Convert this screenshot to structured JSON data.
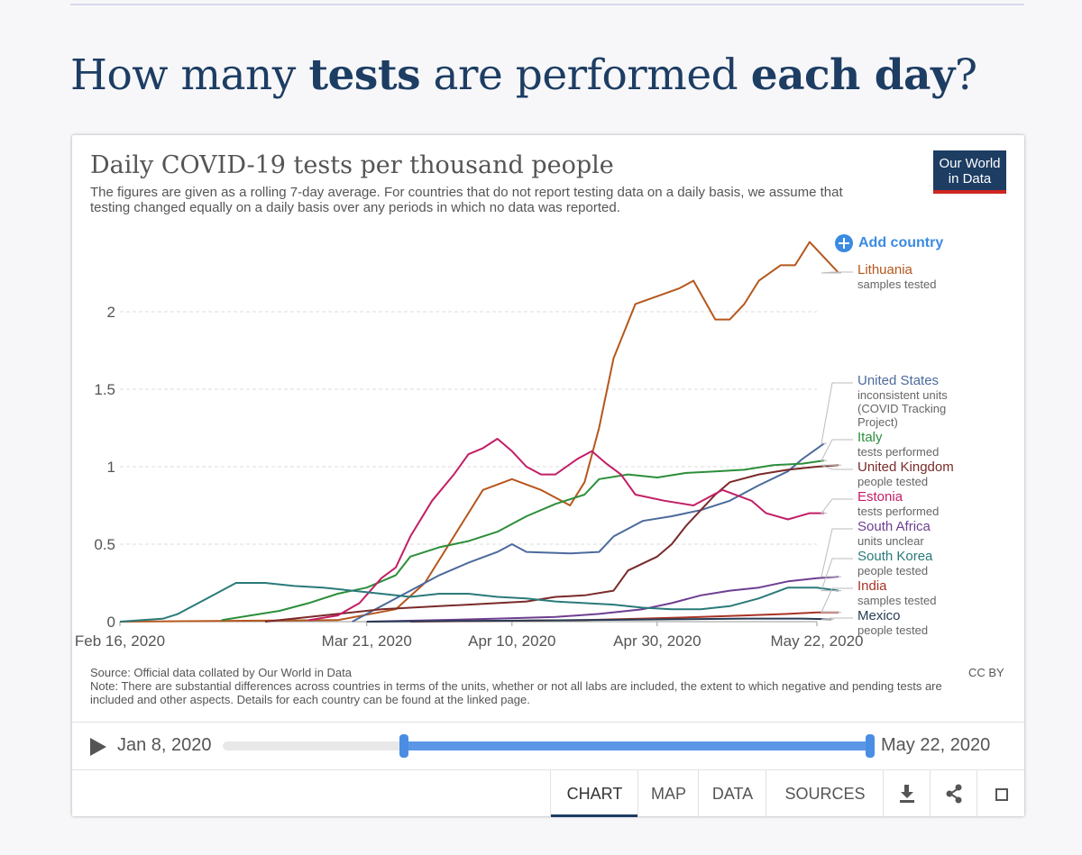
{
  "page": {
    "title_pre": "How many ",
    "title_b1": "tests",
    "title_mid": " are performed ",
    "title_b2": "each day",
    "title_post": "?"
  },
  "header": {
    "title": "Daily COVID-19 tests per thousand people",
    "subtitle": "The figures are given as a rolling 7-day average. For countries that do not report testing data on a daily basis, we assume that testing changed equally on a daily basis over any periods in which no data was reported.",
    "logo_line1": "Our World",
    "logo_line2": "in Data",
    "add_country": "Add country"
  },
  "footer": {
    "source": "Source: Official data collated by Our World in Data",
    "note": "Note: There are substantial differences across countries in terms of the units, whether or not all labs are included, the extent to which negative and pending tests are included and other aspects. Details for each country can be found at the linked page.",
    "license": "CC BY"
  },
  "timeline": {
    "start_label": "Jan 8, 2020",
    "end_label": "May 22, 2020",
    "range_start_fraction": 0.28,
    "range_end_fraction": 1.0
  },
  "tabs": {
    "chart": "CHART",
    "map": "MAP",
    "data": "DATA",
    "sources": "SOURCES"
  },
  "colors": {
    "accent": "#3b8be2",
    "brand": "#1d3d63",
    "brand_stripe": "#ce261e"
  },
  "chart_data": {
    "type": "line",
    "title": "Daily COVID-19 tests per thousand people",
    "xlabel": "",
    "ylabel": "",
    "x_domain": [
      0,
      96
    ],
    "ylim": [
      0,
      2.5
    ],
    "y_ticks": [
      0,
      0.5,
      1,
      1.5,
      2
    ],
    "y_tick_labels": [
      "0",
      "0.5",
      "1",
      "1.5",
      "2"
    ],
    "x_ticks": [
      0,
      34,
      54,
      74,
      96
    ],
    "x_tick_labels": [
      "Feb 16, 2020",
      "Mar 21, 2020",
      "Apr 10, 2020",
      "Apr 30, 2020",
      "May 22, 2020"
    ],
    "x_unit": "days since Feb 16, 2020",
    "grid": "horizontal dashed",
    "series": [
      {
        "name": "Lithuania",
        "sublabel": "samples tested",
        "color": "#b5571d",
        "points": [
          [
            0,
            0
          ],
          [
            30,
            0.01
          ],
          [
            38,
            0.08
          ],
          [
            42,
            0.25
          ],
          [
            46,
            0.55
          ],
          [
            50,
            0.85
          ],
          [
            54,
            0.92
          ],
          [
            58,
            0.85
          ],
          [
            62,
            0.75
          ],
          [
            64,
            0.9
          ],
          [
            66,
            1.25
          ],
          [
            68,
            1.7
          ],
          [
            71,
            2.05
          ],
          [
            74,
            2.1
          ],
          [
            77,
            2.15
          ],
          [
            79,
            2.2
          ],
          [
            82,
            1.95
          ],
          [
            84,
            1.95
          ],
          [
            86,
            2.05
          ],
          [
            88,
            2.2
          ],
          [
            91,
            2.3
          ],
          [
            93,
            2.3
          ],
          [
            95,
            2.45
          ],
          [
            97,
            2.35
          ],
          [
            99,
            2.25
          ]
        ]
      },
      {
        "name": "United States",
        "sublabel": "inconsistent units (COVID Tracking Project)",
        "color": "#4c6a9c",
        "points": [
          [
            32,
            0
          ],
          [
            36,
            0.1
          ],
          [
            40,
            0.2
          ],
          [
            44,
            0.3
          ],
          [
            48,
            0.38
          ],
          [
            52,
            0.45
          ],
          [
            54,
            0.5
          ],
          [
            56,
            0.45
          ],
          [
            62,
            0.44
          ],
          [
            66,
            0.45
          ],
          [
            68,
            0.55
          ],
          [
            72,
            0.65
          ],
          [
            76,
            0.68
          ],
          [
            80,
            0.72
          ],
          [
            84,
            0.78
          ],
          [
            88,
            0.88
          ],
          [
            92,
            0.97
          ],
          [
            94,
            1.05
          ],
          [
            97,
            1.15
          ]
        ]
      },
      {
        "name": "Italy",
        "sublabel": "tests performed",
        "color": "#2c8e3a",
        "points": [
          [
            14,
            0.01
          ],
          [
            18,
            0.04
          ],
          [
            22,
            0.07
          ],
          [
            26,
            0.12
          ],
          [
            30,
            0.18
          ],
          [
            34,
            0.22
          ],
          [
            38,
            0.3
          ],
          [
            40,
            0.42
          ],
          [
            44,
            0.48
          ],
          [
            48,
            0.52
          ],
          [
            52,
            0.58
          ],
          [
            56,
            0.68
          ],
          [
            60,
            0.76
          ],
          [
            64,
            0.82
          ],
          [
            66,
            0.92
          ],
          [
            70,
            0.95
          ],
          [
            74,
            0.93
          ],
          [
            78,
            0.96
          ],
          [
            82,
            0.97
          ],
          [
            86,
            0.98
          ],
          [
            90,
            1.01
          ],
          [
            94,
            1.02
          ],
          [
            97,
            1.04
          ]
        ]
      },
      {
        "name": "United Kingdom",
        "sublabel": "people tested",
        "color": "#7a2a2a",
        "points": [
          [
            20,
            0
          ],
          [
            30,
            0.05
          ],
          [
            36,
            0.08
          ],
          [
            44,
            0.1
          ],
          [
            52,
            0.12
          ],
          [
            56,
            0.13
          ],
          [
            60,
            0.16
          ],
          [
            64,
            0.17
          ],
          [
            68,
            0.2
          ],
          [
            70,
            0.33
          ],
          [
            74,
            0.42
          ],
          [
            76,
            0.5
          ],
          [
            78,
            0.62
          ],
          [
            80,
            0.72
          ],
          [
            82,
            0.82
          ],
          [
            84,
            0.9
          ],
          [
            88,
            0.95
          ],
          [
            92,
            0.98
          ],
          [
            96,
            1.0
          ],
          [
            99,
            1.01
          ]
        ]
      },
      {
        "name": "Estonia",
        "sublabel": "tests performed",
        "color": "#c21e66",
        "points": [
          [
            26,
            0.01
          ],
          [
            30,
            0.04
          ],
          [
            33,
            0.12
          ],
          [
            36,
            0.28
          ],
          [
            38,
            0.35
          ],
          [
            40,
            0.55
          ],
          [
            43,
            0.78
          ],
          [
            46,
            0.95
          ],
          [
            48,
            1.08
          ],
          [
            50,
            1.12
          ],
          [
            52,
            1.18
          ],
          [
            54,
            1.1
          ],
          [
            56,
            1.0
          ],
          [
            58,
            0.95
          ],
          [
            60,
            0.95
          ],
          [
            63,
            1.05
          ],
          [
            65,
            1.1
          ],
          [
            67,
            1.02
          ],
          [
            69,
            0.95
          ],
          [
            71,
            0.82
          ],
          [
            75,
            0.78
          ],
          [
            79,
            0.75
          ],
          [
            83,
            0.85
          ],
          [
            87,
            0.78
          ],
          [
            89,
            0.7
          ],
          [
            92,
            0.66
          ],
          [
            95,
            0.7
          ],
          [
            97,
            0.7
          ]
        ]
      },
      {
        "name": "South Africa",
        "sublabel": "units unclear",
        "color": "#6d3e91",
        "points": [
          [
            34,
            0
          ],
          [
            44,
            0.01
          ],
          [
            52,
            0.02
          ],
          [
            60,
            0.03
          ],
          [
            66,
            0.05
          ],
          [
            72,
            0.08
          ],
          [
            76,
            0.12
          ],
          [
            80,
            0.17
          ],
          [
            84,
            0.2
          ],
          [
            88,
            0.22
          ],
          [
            92,
            0.26
          ],
          [
            96,
            0.28
          ],
          [
            99,
            0.29
          ]
        ]
      },
      {
        "name": "South Korea",
        "sublabel": "people tested",
        "color": "#2a7a7a",
        "points": [
          [
            0,
            0
          ],
          [
            6,
            0.02
          ],
          [
            8,
            0.05
          ],
          [
            12,
            0.15
          ],
          [
            16,
            0.25
          ],
          [
            20,
            0.25
          ],
          [
            24,
            0.23
          ],
          [
            28,
            0.22
          ],
          [
            32,
            0.2
          ],
          [
            36,
            0.18
          ],
          [
            40,
            0.16
          ],
          [
            44,
            0.18
          ],
          [
            48,
            0.18
          ],
          [
            52,
            0.16
          ],
          [
            56,
            0.15
          ],
          [
            60,
            0.13
          ],
          [
            64,
            0.12
          ],
          [
            68,
            0.11
          ],
          [
            72,
            0.09
          ],
          [
            76,
            0.08
          ],
          [
            80,
            0.08
          ],
          [
            84,
            0.1
          ],
          [
            88,
            0.15
          ],
          [
            92,
            0.22
          ],
          [
            96,
            0.22
          ],
          [
            99,
            0.2
          ]
        ]
      },
      {
        "name": "India",
        "sublabel": "samples tested",
        "color": "#a83325",
        "points": [
          [
            40,
            0
          ],
          [
            52,
            0.005
          ],
          [
            64,
            0.01
          ],
          [
            72,
            0.02
          ],
          [
            80,
            0.03
          ],
          [
            86,
            0.04
          ],
          [
            92,
            0.05
          ],
          [
            96,
            0.06
          ],
          [
            99,
            0.06
          ]
        ]
      },
      {
        "name": "Mexico",
        "sublabel": "people tested",
        "color": "#283c54",
        "points": [
          [
            34,
            0
          ],
          [
            50,
            0.005
          ],
          [
            64,
            0.01
          ],
          [
            76,
            0.015
          ],
          [
            86,
            0.02
          ],
          [
            94,
            0.02
          ],
          [
            98,
            0.015
          ]
        ]
      }
    ]
  }
}
